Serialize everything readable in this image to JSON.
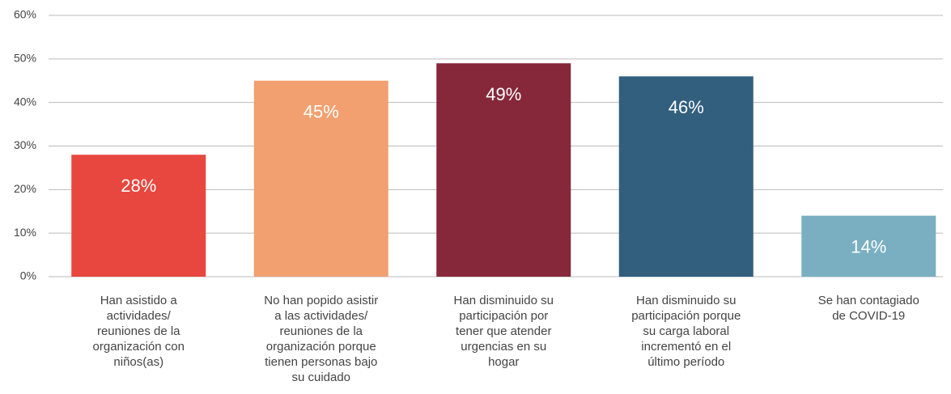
{
  "chart_data": {
    "type": "bar",
    "categories": [
      "Han asistido a\nactividades/\nreuniones de la\norganización con\nniños(as)",
      "No han popido asistir\na las actividades/\nreuniones de la\norganización porque\ntienen personas bajo\nsu cuidado",
      "Han disminuido su\nparticipación por\ntener que atender\nurgencias en su\nhogar",
      "Han disminuido su\nparticipación porque\nsu carga laboral\nincrementó en el\núltimo período",
      "Se han contagiado\nde COVID-19"
    ],
    "values": [
      28,
      45,
      49,
      46,
      14
    ],
    "value_labels": [
      "28%",
      "45%",
      "49%",
      "46%",
      "14%"
    ],
    "colors": [
      "#e8473f",
      "#f2a070",
      "#86283a",
      "#325f7e",
      "#79afc1"
    ],
    "ylim": [
      0,
      60
    ],
    "yticks": [
      {
        "value": 0,
        "label": "0%"
      },
      {
        "value": 10,
        "label": "10%"
      },
      {
        "value": 20,
        "label": "20%"
      },
      {
        "value": 30,
        "label": "30%"
      },
      {
        "value": 40,
        "label": "40%"
      },
      {
        "value": 50,
        "label": "50%"
      },
      {
        "value": 60,
        "label": "60%"
      }
    ],
    "grid": true
  }
}
